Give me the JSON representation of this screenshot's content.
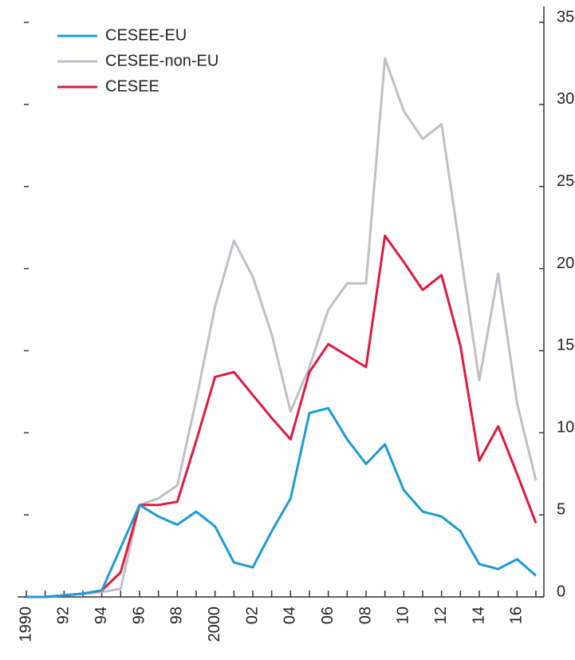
{
  "chart_data": {
    "type": "line",
    "categories": [
      "1990",
      null,
      "92",
      null,
      "94",
      null,
      "96",
      null,
      "98",
      null,
      "2000",
      null,
      "02",
      null,
      "04",
      null,
      "06",
      null,
      "08",
      null,
      "10",
      null,
      "12",
      null,
      "14",
      null,
      "16",
      null
    ],
    "series": [
      {
        "name": "CESEE-EU",
        "color": "#1a9bd7",
        "values": [
          0,
          0,
          0.1,
          0.2,
          0.4,
          3.0,
          5.6,
          4.9,
          4.4,
          5.2,
          4.3,
          2.1,
          1.8,
          4.0,
          6.0,
          11.2,
          11.5,
          9.6,
          8.1,
          9.3,
          6.5,
          5.2,
          4.9,
          4.0,
          2.0,
          1.7,
          2.3,
          1.3
        ]
      },
      {
        "name": "CESEE-non-EU",
        "color": "#bfbfc8",
        "values": [
          0,
          0,
          0.1,
          0.2,
          0.3,
          0.5,
          5.6,
          6.0,
          6.8,
          12.0,
          17.7,
          21.7,
          19.5,
          16.0,
          11.3,
          14.0,
          17.5,
          19.1,
          19.1,
          32.8,
          29.6,
          27.9,
          28.8,
          21.0,
          13.2,
          19.7,
          11.8,
          7.1
        ]
      },
      {
        "name": "CESEE",
        "color": "#e0193d",
        "values": [
          0,
          0,
          0.1,
          0.2,
          0.4,
          1.5,
          5.6,
          5.6,
          5.8,
          9.5,
          13.4,
          13.7,
          12.3,
          10.9,
          9.6,
          13.7,
          15.4,
          14.7,
          14.0,
          22.0,
          20.4,
          18.7,
          19.6,
          15.3,
          8.3,
          10.4,
          7.5,
          4.5
        ]
      }
    ],
    "ylim": [
      0,
      35
    ],
    "yticks": [
      0,
      5,
      10,
      15,
      20,
      25,
      30,
      35
    ]
  }
}
